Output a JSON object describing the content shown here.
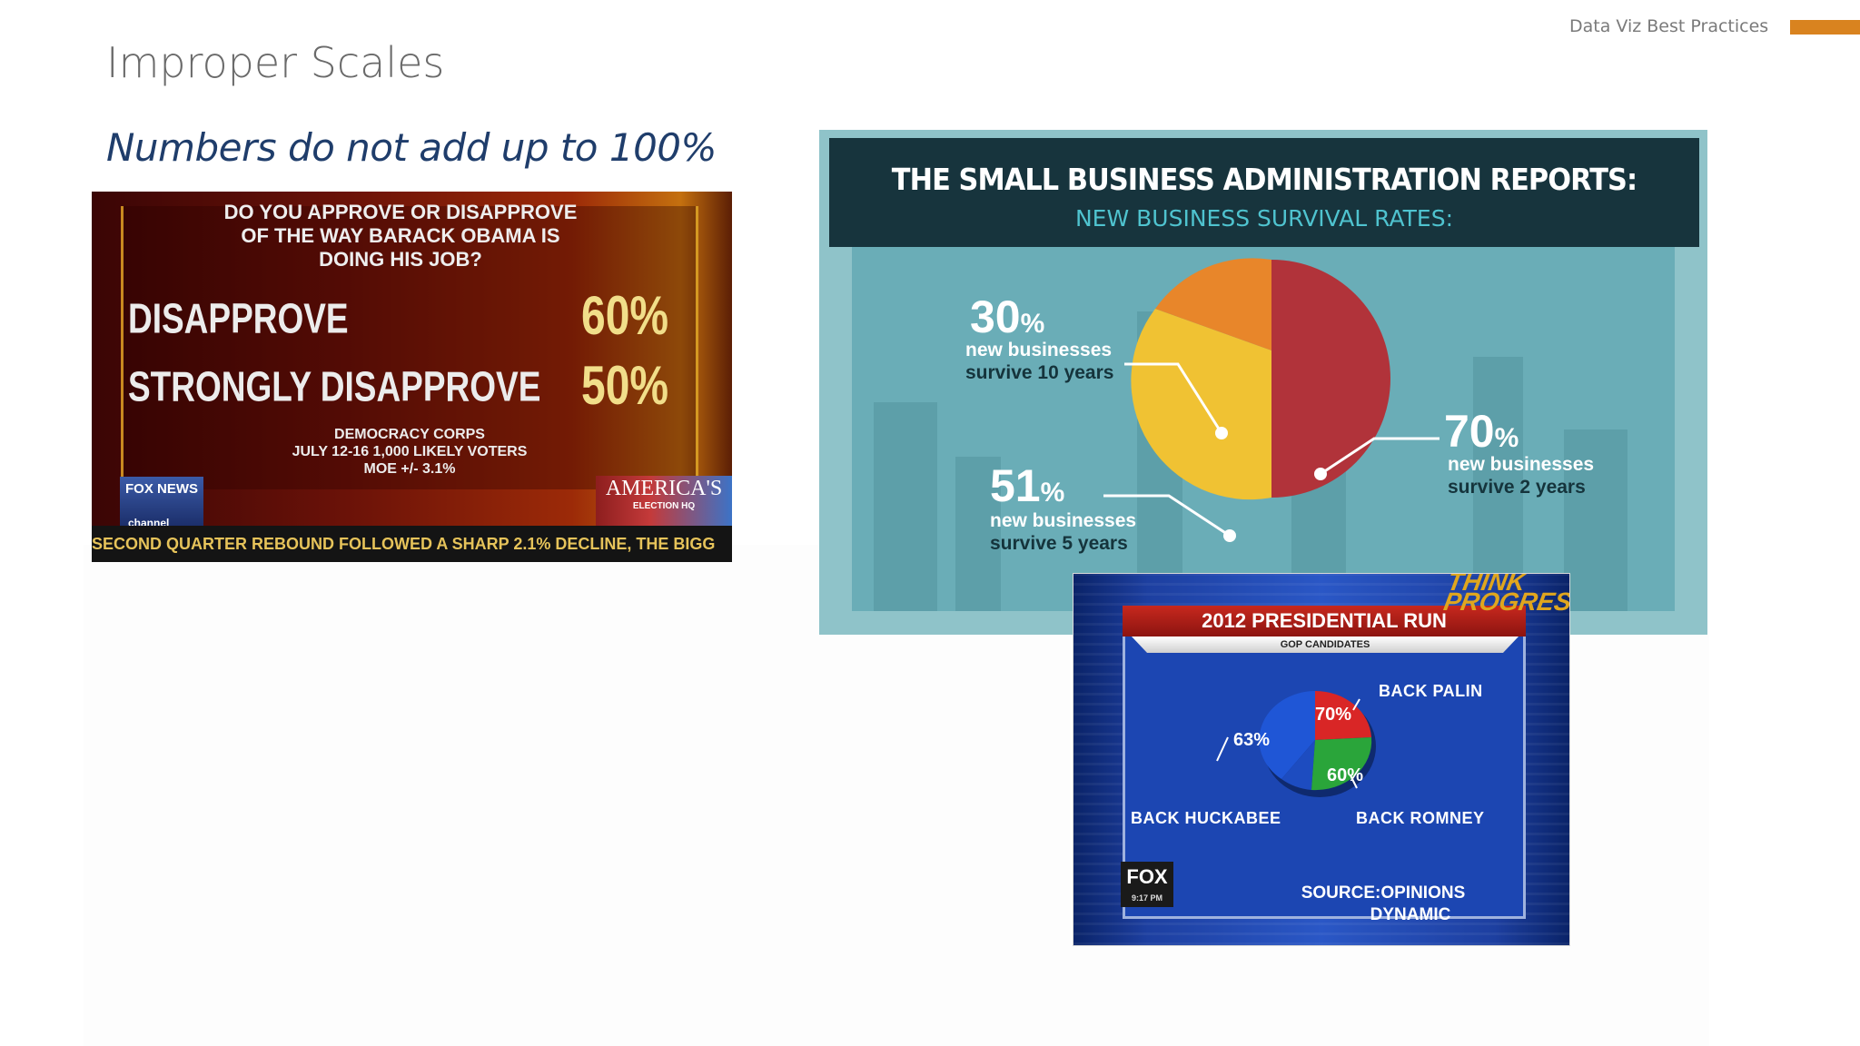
{
  "header": {
    "deck_label": "Data Viz Best Practices",
    "accent_color": "#d9831f"
  },
  "slide": {
    "title": "Improper Scales",
    "subtitle": "Numbers do not add up to 100%"
  },
  "fox_poll": {
    "question": "DO YOU APPROVE OR DISAPPROVE OF THE WAY BARACK OBAMA IS DOING HIS JOB?",
    "rows": [
      {
        "label": "DISAPPROVE",
        "value": "60%"
      },
      {
        "label": "STRONGLY DISAPPROVE",
        "value": "50%"
      }
    ],
    "source_line1": "DEMOCRACY CORPS",
    "source_line2": "JULY 12-16 1,000 LIKELY VOTERS",
    "source_line3": "MOE +/- 3.1%",
    "logo_text": "FOX NEWS",
    "channel": "channel",
    "election_line1": "AMERICA'S",
    "election_line2": "ELECTION HQ",
    "ticker": "SECOND QUARTER REBOUND FOLLOWED A SHARP 2.1% DECLINE, THE BIGG"
  },
  "sba": {
    "title": "THE SMALL BUSINESS ADMINISTRATION REPORTS:",
    "subtitle": "NEW BUSINESS SURVIVAL RATES:",
    "items": [
      {
        "num": "30",
        "unit": "%",
        "line1": "new businesses",
        "line2": "survive 10 years",
        "color": "#e8862a"
      },
      {
        "num": "51",
        "unit": "%",
        "line1": "new businesses",
        "line2": "survive 5 years",
        "color": "#f0c233"
      },
      {
        "num": "70",
        "unit": "%",
        "line1": "new businesses",
        "line2": "survive 2 years",
        "color": "#b1333a"
      }
    ]
  },
  "fox_gop": {
    "title": "2012 PRESIDENTIAL RUN",
    "subtitle": "GOP CANDIDATES",
    "brand": "THINK PROGRESS",
    "slices": [
      {
        "label": "BACK PALIN",
        "pct": "70%",
        "color": "#d92626"
      },
      {
        "label": "BACK HUCKABEE",
        "pct": "63%",
        "color": "#1f56d6"
      },
      {
        "label": "BACK ROMNEY",
        "pct": "60%",
        "color": "#2aa53a"
      }
    ],
    "logo": "FOX",
    "logo_time": "9:17 PM",
    "source_line1": "SOURCE:OPINIONS",
    "source_line2": "DYNAMIC"
  }
}
